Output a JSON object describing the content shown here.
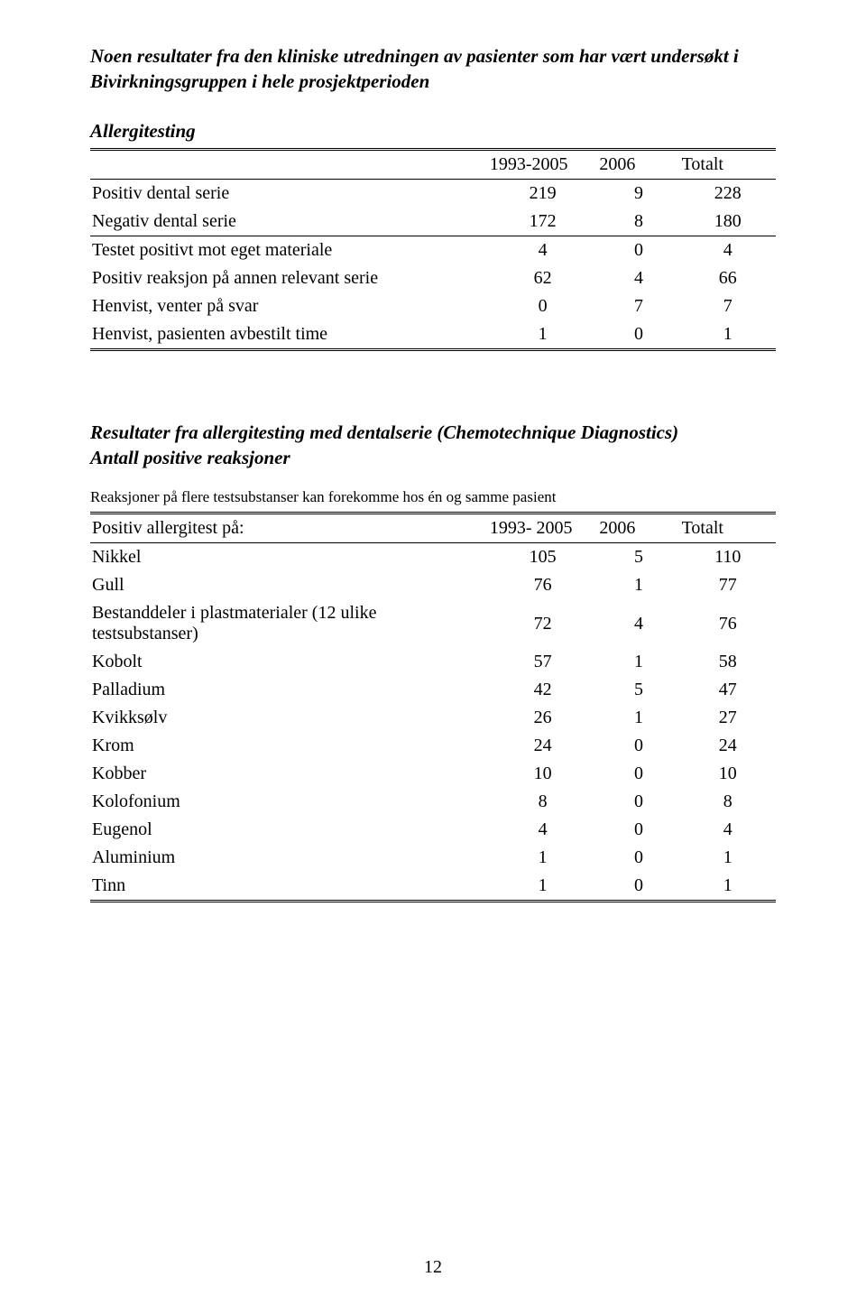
{
  "title": "Noen resultater fra den kliniske utredningen av pasienter som har vært undersøkt i Bivirkningsgruppen i hele prosjektperioden",
  "table1": {
    "heading": "Allergitesting",
    "columns": [
      "",
      "1993-2005",
      "2006",
      "Totalt"
    ],
    "rows": [
      {
        "label": "Positiv dental serie",
        "a": "219",
        "b": "9",
        "c": "228",
        "sep": false
      },
      {
        "label": "Negativ dental serie",
        "a": "172",
        "b": "8",
        "c": "180",
        "sep": false
      },
      {
        "label": "Testet positivt mot eget materiale",
        "a": "4",
        "b": "0",
        "c": "4",
        "sep": true
      },
      {
        "label": "Positiv reaksjon på annen relevant serie",
        "a": "62",
        "b": "4",
        "c": "66",
        "sep": false
      },
      {
        "label": "Henvist, venter på svar",
        "a": "0",
        "b": "7",
        "c": "7",
        "sep": false
      },
      {
        "label": "Henvist, pasienten avbestilt time",
        "a": "1",
        "b": "0",
        "c": "1",
        "sep": false
      }
    ]
  },
  "section2": {
    "line1": "Resultater fra allergitesting med dentalserie (Chemotechnique Diagnostics)",
    "line2": "Antall positive reaksjoner",
    "note": "Reaksjoner på flere testsubstanser kan forekomme hos én og samme pasient"
  },
  "table2": {
    "columns": [
      "Positiv allergitest på:",
      "1993- 2005",
      "2006",
      "Totalt"
    ],
    "rows": [
      {
        "label": "Nikkel",
        "a": "105",
        "b": "5",
        "c": "110",
        "sep": true
      },
      {
        "label": "Gull",
        "a": "76",
        "b": "1",
        "c": "77",
        "sep": false
      },
      {
        "label": "Bestanddeler i plastmaterialer (12 ulike testsubstanser)",
        "a": "72",
        "b": "4",
        "c": "76",
        "sep": false
      },
      {
        "label": "Kobolt",
        "a": "57",
        "b": "1",
        "c": "58",
        "sep": false
      },
      {
        "label": "Palladium",
        "a": "42",
        "b": "5",
        "c": "47",
        "sep": false
      },
      {
        "label": "Kvikksølv",
        "a": "26",
        "b": "1",
        "c": "27",
        "sep": false
      },
      {
        "label": "Krom",
        "a": "24",
        "b": "0",
        "c": "24",
        "sep": false
      },
      {
        "label": "Kobber",
        "a": "10",
        "b": "0",
        "c": "10",
        "sep": false
      },
      {
        "label": "Kolofonium",
        "a": "8",
        "b": "0",
        "c": "8",
        "sep": false
      },
      {
        "label": "Eugenol",
        "a": "4",
        "b": "0",
        "c": "4",
        "sep": false
      },
      {
        "label": "Aluminium",
        "a": "1",
        "b": "0",
        "c": "1",
        "sep": false
      },
      {
        "label": "Tinn",
        "a": "1",
        "b": "0",
        "c": "1",
        "sep": false
      }
    ]
  },
  "pageNumber": "12"
}
